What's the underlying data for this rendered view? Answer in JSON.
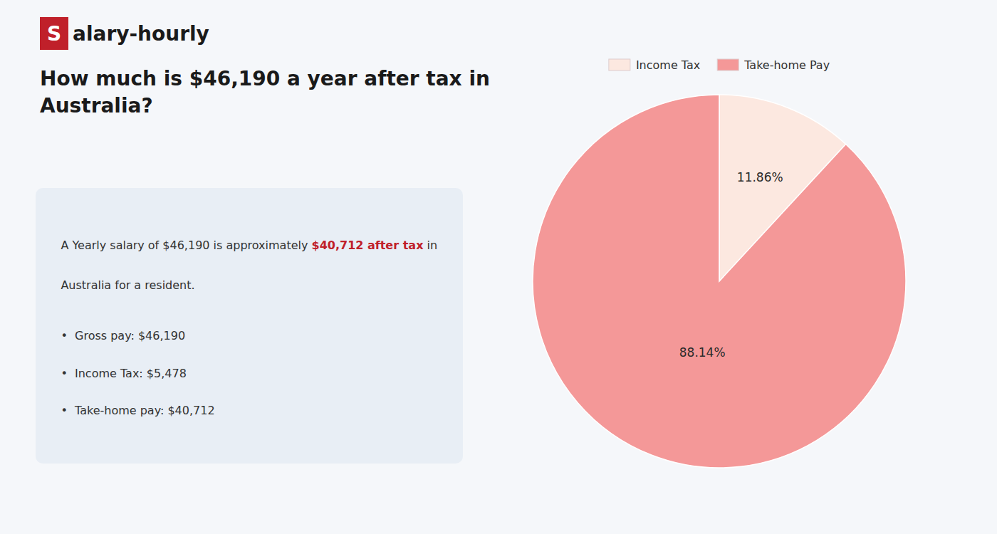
{
  "chart_data": {
    "type": "pie",
    "title": "How much is $46,190 a year after tax in\nAustralia?",
    "categories": [
      "Income Tax",
      "Take-home Pay"
    ],
    "values": [
      11.86,
      88.14
    ],
    "value_labels": [
      "11.86%",
      "88.14%"
    ],
    "data_labels": true,
    "colors": [
      "#fce8e0",
      "#f49898"
    ],
    "legend": "top",
    "annotations": [
      "S",
      "alary-hourly",
      "A Yearly salary of $46,190 is approximately ",
      "$40,712 after tax",
      " in",
      "Australia for a resident.",
      "•  Gross pay: $46,190",
      "•  Income Tax: $5,478",
      "•  Take-home pay: $40,712"
    ]
  }
}
